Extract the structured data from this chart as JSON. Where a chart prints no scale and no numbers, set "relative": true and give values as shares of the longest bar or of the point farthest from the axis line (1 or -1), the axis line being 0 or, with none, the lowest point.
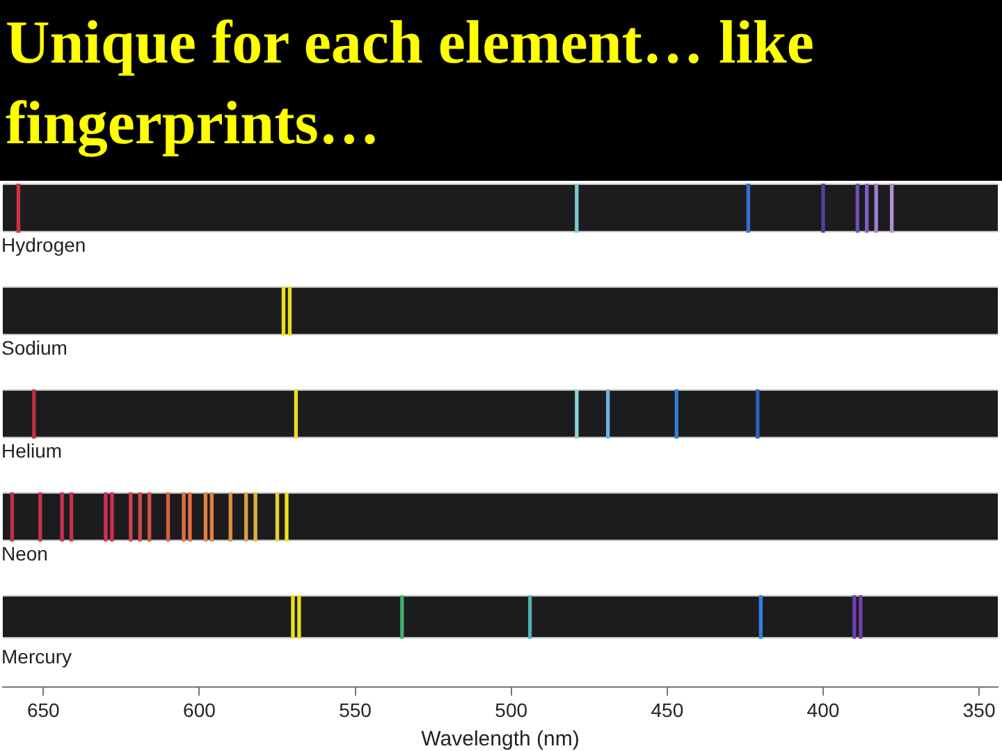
{
  "chart_data": [
    {
      "type": "bar",
      "title": "Unique for each element… like fingerprints…",
      "subtitle": "Hydrogen",
      "relative": true,
      "tick_labels": false,
      "xlim": [
        663,
        344
      ],
      "xticks": [
        650,
        600,
        550,
        500,
        450,
        400,
        350
      ],
      "x": [
        658,
        479,
        424,
        400,
        389,
        386,
        383,
        378
      ],
      "values": [
        1,
        1,
        1,
        1,
        1,
        1,
        1,
        1
      ],
      "colors": [
        "#d03040",
        "#80c8d0",
        "#3070d0",
        "#5040a0",
        "#7050b0",
        "#8060c0",
        "#a080d0",
        "#b090d0"
      ]
    },
    {
      "type": "bar",
      "subtitle": "Sodium",
      "relative": true,
      "tick_labels": false,
      "xlim": [
        663,
        344
      ],
      "xticks": [
        650,
        600,
        550,
        500,
        450,
        400,
        350
      ],
      "x": [
        573,
        571
      ],
      "values": [
        1,
        1
      ],
      "colors": [
        "#e8e020",
        "#e8e020"
      ]
    },
    {
      "type": "bar",
      "subtitle": "Helium",
      "relative": true,
      "tick_labels": false,
      "xlim": [
        663,
        344
      ],
      "xticks": [
        650,
        600,
        550,
        500,
        450,
        400,
        350
      ],
      "x": [
        653,
        569,
        479,
        469,
        447,
        421
      ],
      "values": [
        1,
        1,
        1,
        1,
        1,
        1
      ],
      "colors": [
        "#c03040",
        "#e8e020",
        "#90d0d8",
        "#70b0e0",
        "#3080d0",
        "#3060c0"
      ]
    },
    {
      "type": "bar",
      "subtitle": "Neon",
      "relative": true,
      "tick_labels": false,
      "xlim": [
        663,
        344
      ],
      "xticks": [
        650,
        600,
        550,
        500,
        450,
        400,
        350
      ],
      "x": [
        660,
        651,
        644,
        641,
        630,
        628,
        622,
        619,
        616,
        610,
        605,
        603,
        598,
        596,
        590,
        585,
        582,
        575,
        572
      ],
      "values": [
        1,
        1,
        1,
        1,
        1,
        1,
        1,
        1,
        1,
        1,
        1,
        1,
        1,
        1,
        1,
        1,
        1,
        1,
        1
      ],
      "colors": [
        "#c03048",
        "#c83048",
        "#c83050",
        "#c83050",
        "#d03058",
        "#d03050",
        "#d04050",
        "#d04848",
        "#d85040",
        "#d86040",
        "#e07040",
        "#e07040",
        "#e08040",
        "#e08040",
        "#e09040",
        "#e0a040",
        "#e0b040",
        "#e8d030",
        "#f0e020"
      ]
    },
    {
      "type": "bar",
      "subtitle": "Mercury",
      "relative": true,
      "xlabel": "Wavelength (nm)",
      "xlim": [
        663,
        344
      ],
      "xticks": [
        650,
        600,
        550,
        500,
        450,
        400,
        350
      ],
      "x": [
        570,
        568,
        535,
        494,
        420,
        390,
        388
      ],
      "values": [
        1,
        1,
        1,
        1,
        1,
        1,
        1
      ],
      "colors": [
        "#e8e020",
        "#e8e020",
        "#40b070",
        "#50b0b0",
        "#3080e0",
        "#7040b0",
        "#7040b0"
      ]
    }
  ]
}
